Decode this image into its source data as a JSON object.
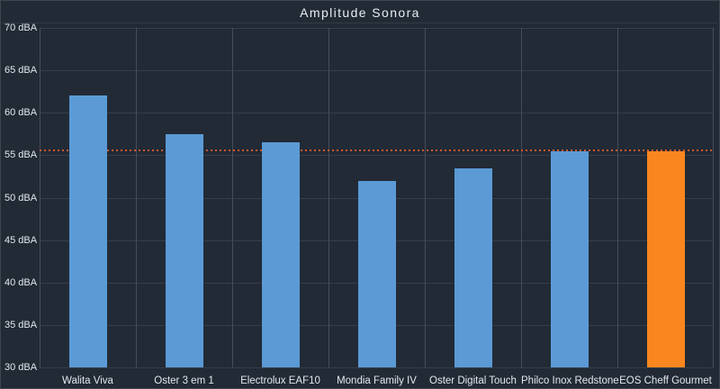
{
  "title": "Amplitude Sonora",
  "colors": {
    "background": "#222a35",
    "frame_border": "#3d454f",
    "hgrid": "#353e49",
    "vgrid": "#474e59",
    "text": "#e2e7ed",
    "bar_default": "#5b9ad5",
    "bar_highlight": "#f9861e",
    "reference_line": "#cc5a2e"
  },
  "chart_data": {
    "type": "bar",
    "title": "Amplitude Sonora",
    "categories": [
      "Walita Viva",
      "Oster 3 em 1",
      "Electrolux EAF10",
      "Mondia Family IV",
      "Oster Digital Touch",
      "Philco Inox Redstone",
      "EOS Cheff Gourmet"
    ],
    "values": [
      62,
      57.5,
      56.5,
      52,
      53.5,
      55.5,
      55.5
    ],
    "bar_colors": [
      "#5b9ad5",
      "#5b9ad5",
      "#5b9ad5",
      "#5b9ad5",
      "#5b9ad5",
      "#5b9ad5",
      "#f9861e"
    ],
    "highlight_index": 6,
    "highlight_category": "EOS Cheff Gourmet",
    "unit": "dBA",
    "ylim": [
      30,
      70
    ],
    "ytick_step": 5,
    "ytick_labels": [
      "70 dBA",
      "65 dBA",
      "60 dBA",
      "55 dBA",
      "50 dBA",
      "45 dBA",
      "40 dBA",
      "35 dBA",
      "30 dBA"
    ],
    "xlabel": "",
    "ylabel": "",
    "grid": true,
    "legend": false,
    "reference_line": {
      "value": 55.6,
      "style": "dotted",
      "color": "#cc5a2e"
    }
  }
}
